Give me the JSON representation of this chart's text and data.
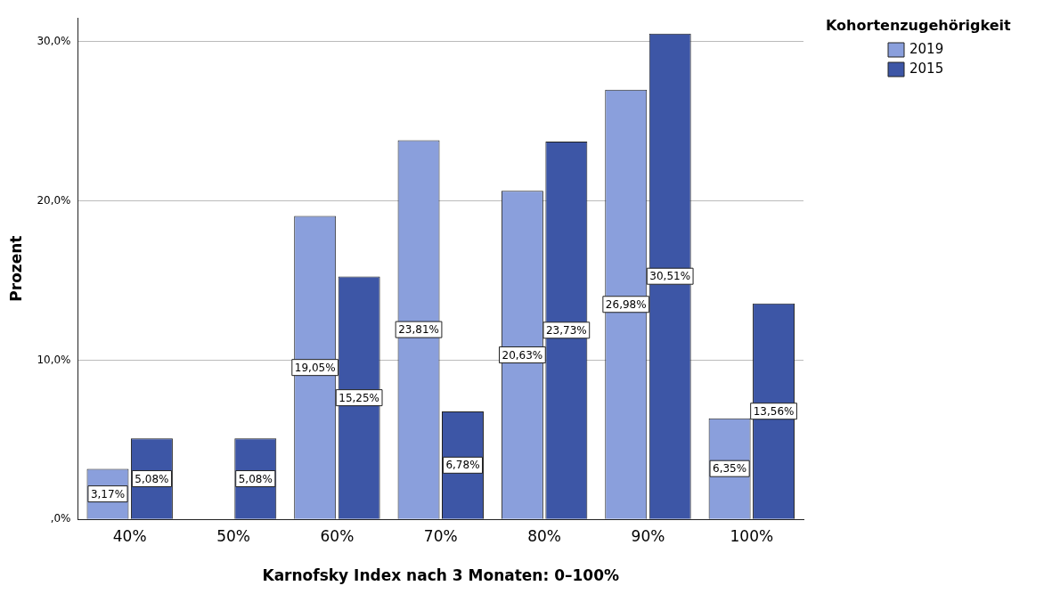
{
  "chart_data": {
    "type": "bar",
    "xlabel": "Karnofsky Index nach 3 Monaten: 0–100%",
    "ylabel": "Prozent",
    "legend_title": "Kohortenzugehörigkeit",
    "categories": [
      "40%",
      "50%",
      "60%",
      "70%",
      "80%",
      "90%",
      "100%"
    ],
    "series": [
      {
        "name": "2019",
        "color": "#8a9fdc",
        "values": [
          3.17,
          0,
          19.05,
          23.81,
          20.63,
          26.98,
          6.35
        ],
        "value_labels": [
          "3,17%",
          null,
          "19,05%",
          "23,81%",
          "20,63%",
          "26,98%",
          "6,35%"
        ]
      },
      {
        "name": "2015",
        "color": "#3d56a6",
        "values": [
          5.08,
          5.08,
          15.25,
          6.78,
          23.73,
          30.51,
          13.56
        ],
        "value_labels": [
          "5,08%",
          "5,08%",
          "15,25%",
          "6,78%",
          "23,73%",
          "30,51%",
          "13,56%"
        ]
      }
    ],
    "ylim": [
      0,
      31.5
    ],
    "yticks": [
      {
        "value": 0,
        "label": ",0%"
      },
      {
        "value": 10,
        "label": "10,0%"
      },
      {
        "value": 20,
        "label": "20,0%"
      },
      {
        "value": 30,
        "label": "30,0%"
      }
    ],
    "grid": "y",
    "legend": "top right"
  }
}
